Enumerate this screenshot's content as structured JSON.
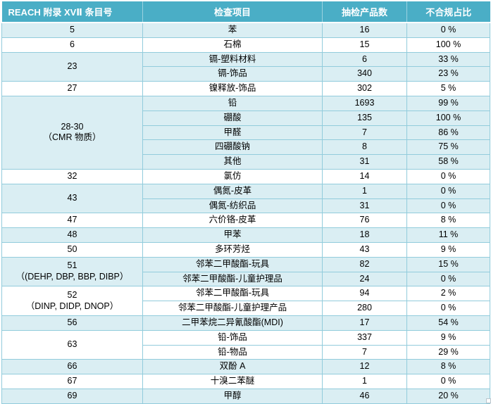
{
  "colors": {
    "header_bg": "#4AAEC6",
    "header_text": "#FFFFFF",
    "band_blue": "#DAEEF3",
    "band_white": "#FFFFFF",
    "border": "#92CCDC",
    "body_text": "#000000"
  },
  "table": {
    "columns": [
      {
        "label": "REACH 附录 XVⅡ 条目号"
      },
      {
        "label": "检查项目"
      },
      {
        "label": "抽检产品数"
      },
      {
        "label": "不合规占比"
      }
    ],
    "groups": [
      {
        "entry": [
          "5"
        ],
        "band": "blue",
        "items": [
          {
            "name": "苯",
            "count": "16",
            "pct": "0 %"
          }
        ]
      },
      {
        "entry": [
          "6"
        ],
        "band": "white",
        "items": [
          {
            "name": "石棉",
            "count": "15",
            "pct": "100 %"
          }
        ]
      },
      {
        "entry": [
          "23"
        ],
        "band": "blue",
        "items": [
          {
            "name": "镉-塑料材料",
            "count": "6",
            "pct": "33 %"
          },
          {
            "name": "镉-饰品",
            "count": "340",
            "pct": "23 %"
          }
        ]
      },
      {
        "entry": [
          "27"
        ],
        "band": "white",
        "items": [
          {
            "name": "镍释放-饰品",
            "count": "302",
            "pct": "5 %"
          }
        ]
      },
      {
        "entry": [
          "28-30",
          "（CMR 物质）"
        ],
        "band": "blue",
        "items": [
          {
            "name": "铅",
            "count": "1693",
            "pct": "99 %"
          },
          {
            "name": "硼酸",
            "count": "135",
            "pct": "100 %"
          },
          {
            "name": "甲醛",
            "count": "7",
            "pct": "86 %"
          },
          {
            "name": "四硼酸钠",
            "count": "8",
            "pct": "75 %"
          },
          {
            "name": "其他",
            "count": "31",
            "pct": "58 %"
          }
        ]
      },
      {
        "entry": [
          "32"
        ],
        "band": "white",
        "items": [
          {
            "name": "氯仿",
            "count": "14",
            "pct": "0 %"
          }
        ]
      },
      {
        "entry": [
          "43"
        ],
        "band": "blue",
        "items": [
          {
            "name": "偶氮-皮革",
            "count": "1",
            "pct": "0 %"
          },
          {
            "name": "偶氮-纺织品",
            "count": "31",
            "pct": "0 %"
          }
        ]
      },
      {
        "entry": [
          "47"
        ],
        "band": "white",
        "items": [
          {
            "name": "六价铬-皮革",
            "count": "76",
            "pct": "8 %"
          }
        ]
      },
      {
        "entry": [
          "48"
        ],
        "band": "blue",
        "items": [
          {
            "name": "甲苯",
            "count": "18",
            "pct": "11 %"
          }
        ]
      },
      {
        "entry": [
          "50"
        ],
        "band": "white",
        "items": [
          {
            "name": "多环芳烃",
            "count": "43",
            "pct": "9 %"
          }
        ]
      },
      {
        "entry": [
          "51",
          "（(DEHP, DBP, BBP, DIBP）"
        ],
        "band": "blue",
        "items": [
          {
            "name": "邻苯二甲酸酯-玩具",
            "count": "82",
            "pct": "15 %"
          },
          {
            "name": "邻苯二甲酸酯-儿童护理品",
            "count": "24",
            "pct": "0 %"
          }
        ]
      },
      {
        "entry": [
          "52",
          "（DINP, DIDP, DNOP）"
        ],
        "band": "white",
        "items": [
          {
            "name": "邻苯二甲酸酯-玩具",
            "count": "94",
            "pct": "2 %"
          },
          {
            "name": "邻苯二甲酸酯-儿童护理产品",
            "count": "280",
            "pct": "0 %"
          }
        ]
      },
      {
        "entry": [
          "56"
        ],
        "band": "blue",
        "items": [
          {
            "name": "二甲苯烷二异氰酸酯(MDI)",
            "count": "17",
            "pct": "54 %"
          }
        ]
      },
      {
        "entry": [
          "63"
        ],
        "band": "white",
        "items": [
          {
            "name": "铅-饰品",
            "count": "337",
            "pct": "9 %"
          },
          {
            "name": "铅-物品",
            "count": "7",
            "pct": "29 %"
          }
        ]
      },
      {
        "entry": [
          "66"
        ],
        "band": "blue",
        "items": [
          {
            "name": "双酚 A",
            "count": "12",
            "pct": "8 %"
          }
        ]
      },
      {
        "entry": [
          "67"
        ],
        "band": "white",
        "items": [
          {
            "name": "十溴二苯醚",
            "count": "1",
            "pct": "0 %"
          }
        ]
      },
      {
        "entry": [
          "69"
        ],
        "band": "blue",
        "items": [
          {
            "name": "甲醇",
            "count": "46",
            "pct": "20 %"
          }
        ]
      }
    ]
  },
  "chart_data": {
    "type": "table",
    "title": "",
    "columns": [
      "REACH 附录 XVⅡ 条目号",
      "检查项目",
      "抽检产品数",
      "不合规占比"
    ],
    "rows": [
      [
        "5",
        "苯",
        16,
        "0 %"
      ],
      [
        "6",
        "石棉",
        15,
        "100 %"
      ],
      [
        "23",
        "镉-塑料材料",
        6,
        "33 %"
      ],
      [
        "23",
        "镉-饰品",
        340,
        "23 %"
      ],
      [
        "27",
        "镍释放-饰品",
        302,
        "5 %"
      ],
      [
        "28-30（CMR 物质）",
        "铅",
        1693,
        "99 %"
      ],
      [
        "28-30（CMR 物质）",
        "硼酸",
        135,
        "100 %"
      ],
      [
        "28-30（CMR 物质）",
        "甲醛",
        7,
        "86 %"
      ],
      [
        "28-30（CMR 物质）",
        "四硼酸钠",
        8,
        "75 %"
      ],
      [
        "28-30（CMR 物质）",
        "其他",
        31,
        "58 %"
      ],
      [
        "32",
        "氯仿",
        14,
        "0 %"
      ],
      [
        "43",
        "偶氮-皮革",
        1,
        "0 %"
      ],
      [
        "43",
        "偶氮-纺织品",
        31,
        "0 %"
      ],
      [
        "47",
        "六价铬-皮革",
        76,
        "8 %"
      ],
      [
        "48",
        "甲苯",
        18,
        "11 %"
      ],
      [
        "50",
        "多环芳烃",
        43,
        "9 %"
      ],
      [
        "51（(DEHP, DBP, BBP, DIBP）",
        "邻苯二甲酸酯-玩具",
        82,
        "15 %"
      ],
      [
        "51（(DEHP, DBP, BBP, DIBP）",
        "邻苯二甲酸酯-儿童护理品",
        24,
        "0 %"
      ],
      [
        "52（DINP, DIDP, DNOP）",
        "邻苯二甲酸酯-玩具",
        94,
        "2 %"
      ],
      [
        "52（DINP, DIDP, DNOP）",
        "邻苯二甲酸酯-儿童护理产品",
        280,
        "0 %"
      ],
      [
        "56",
        "二甲苯烷二异氰酸酯(MDI)",
        17,
        "54 %"
      ],
      [
        "63",
        "铅-饰品",
        337,
        "9 %"
      ],
      [
        "63",
        "铅-物品",
        7,
        "29 %"
      ],
      [
        "66",
        "双酚 A",
        12,
        "8 %"
      ],
      [
        "67",
        "十溴二苯醚",
        1,
        "0 %"
      ],
      [
        "69",
        "甲醇",
        46,
        "20 %"
      ]
    ]
  }
}
